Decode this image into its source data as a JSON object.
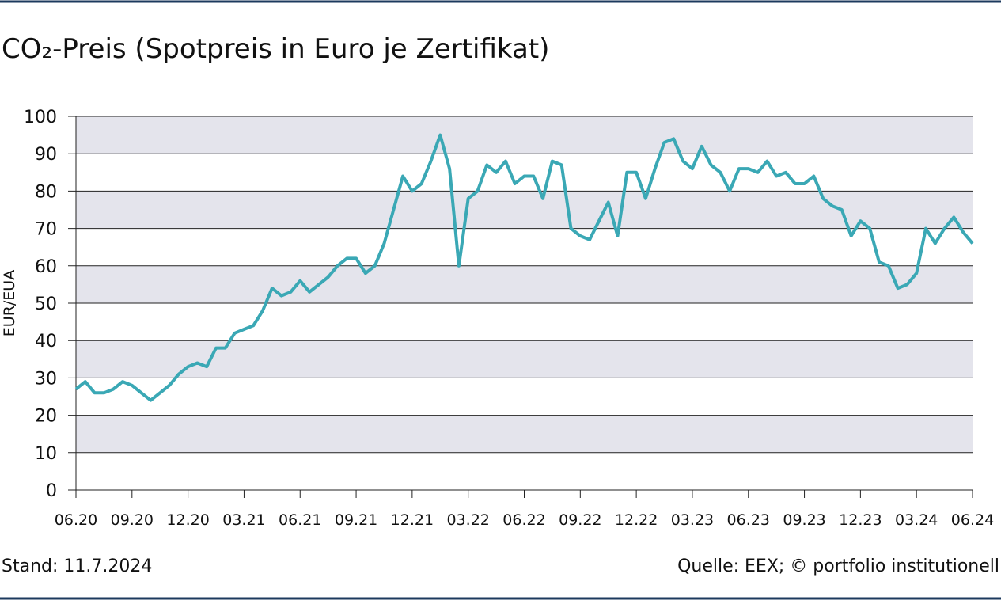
{
  "chart_data": {
    "type": "line",
    "title": "CO₂-Preis (Spotpreis in Euro je Zertifikat)",
    "ylabel": "EUR/EUA",
    "note": "Stand: 11.7.2024",
    "source": "Quelle: EEX; © portfolio institutionell",
    "categories": [
      "06.20",
      null,
      null,
      null,
      null,
      null,
      "09.20",
      null,
      null,
      null,
      null,
      null,
      "12.20",
      null,
      null,
      null,
      null,
      null,
      "03.21",
      null,
      null,
      null,
      null,
      null,
      "06.21",
      null,
      null,
      null,
      null,
      null,
      "09.21",
      null,
      null,
      null,
      null,
      null,
      "12.21",
      null,
      null,
      null,
      null,
      null,
      "03.22",
      null,
      null,
      null,
      null,
      null,
      "06.22",
      null,
      null,
      null,
      null,
      null,
      "09.22",
      null,
      null,
      null,
      null,
      null,
      "12.22",
      null,
      null,
      null,
      null,
      null,
      "03.23",
      null,
      null,
      null,
      null,
      null,
      "06.23",
      null,
      null,
      null,
      null,
      null,
      "09.23",
      null,
      null,
      null,
      null,
      null,
      "12.23",
      null,
      null,
      null,
      null,
      null,
      "03.24",
      null,
      null,
      null,
      null,
      null,
      "06.24"
    ],
    "series": [
      {
        "name": "CO₂-Preis",
        "color": "#3aa8b5",
        "values": [
          27,
          29,
          26,
          26,
          27,
          29,
          28,
          26,
          24,
          26,
          28,
          31,
          33,
          34,
          33,
          38,
          38,
          42,
          43,
          44,
          48,
          54,
          52,
          53,
          56,
          53,
          55,
          57,
          60,
          62,
          62,
          58,
          60,
          66,
          75,
          84,
          80,
          82,
          88,
          95,
          86,
          60,
          78,
          80,
          87,
          85,
          88,
          82,
          84,
          84,
          78,
          88,
          87,
          70,
          68,
          67,
          72,
          77,
          68,
          85,
          85,
          78,
          86,
          93,
          94,
          88,
          86,
          92,
          87,
          85,
          80,
          86,
          86,
          85,
          88,
          84,
          85,
          82,
          82,
          84,
          78,
          76,
          75,
          68,
          72,
          70,
          61,
          60,
          54,
          55,
          58,
          70,
          66,
          70,
          73,
          69,
          66
        ]
      }
    ],
    "ylim": [
      0,
      100
    ],
    "yticks": [
      0,
      10,
      20,
      30,
      40,
      50,
      60,
      70,
      80,
      90,
      100
    ],
    "grid": true
  }
}
